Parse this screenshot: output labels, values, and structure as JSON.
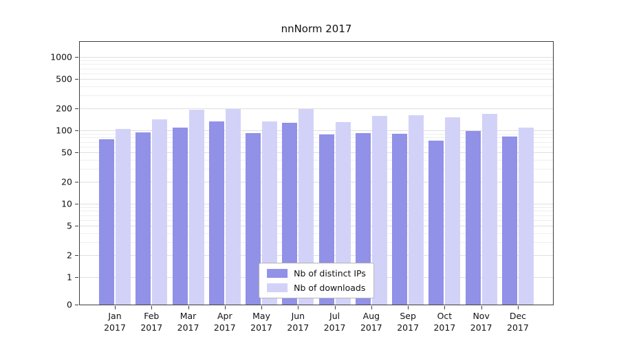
{
  "chart_data": {
    "type": "bar",
    "title": "nnNorm 2017",
    "yscale": "log",
    "grid": true,
    "legend_position": "lower center",
    "ylim": [
      0,
      1000
    ],
    "yticks": [
      0,
      1,
      2,
      5,
      10,
      20,
      50,
      100,
      200,
      500,
      1000
    ],
    "minor_gridlines": [
      3,
      4,
      6,
      7,
      8,
      9,
      30,
      40,
      60,
      70,
      80,
      90,
      300,
      400,
      600,
      700,
      800,
      900
    ],
    "categories": [
      {
        "month": "Jan",
        "year": "2017"
      },
      {
        "month": "Feb",
        "year": "2017"
      },
      {
        "month": "Mar",
        "year": "2017"
      },
      {
        "month": "Apr",
        "year": "2017"
      },
      {
        "month": "May",
        "year": "2017"
      },
      {
        "month": "Jun",
        "year": "2017"
      },
      {
        "month": "Jul",
        "year": "2017"
      },
      {
        "month": "Aug",
        "year": "2017"
      },
      {
        "month": "Sep",
        "year": "2017"
      },
      {
        "month": "Oct",
        "year": "2017"
      },
      {
        "month": "Nov",
        "year": "2017"
      },
      {
        "month": "Dec",
        "year": "2017"
      }
    ],
    "series": [
      {
        "name": "Nb of distinct IPs",
        "color": "#9191e8",
        "values": [
          76,
          94,
          108,
          132,
          92,
          128,
          88,
          91,
          90,
          72,
          97,
          83
        ]
      },
      {
        "name": "Nb of downloads",
        "color": "#d2d2f8",
        "values": [
          104,
          140,
          192,
          197,
          131,
          193,
          129,
          156,
          161,
          149,
          168,
          110
        ]
      }
    ]
  }
}
